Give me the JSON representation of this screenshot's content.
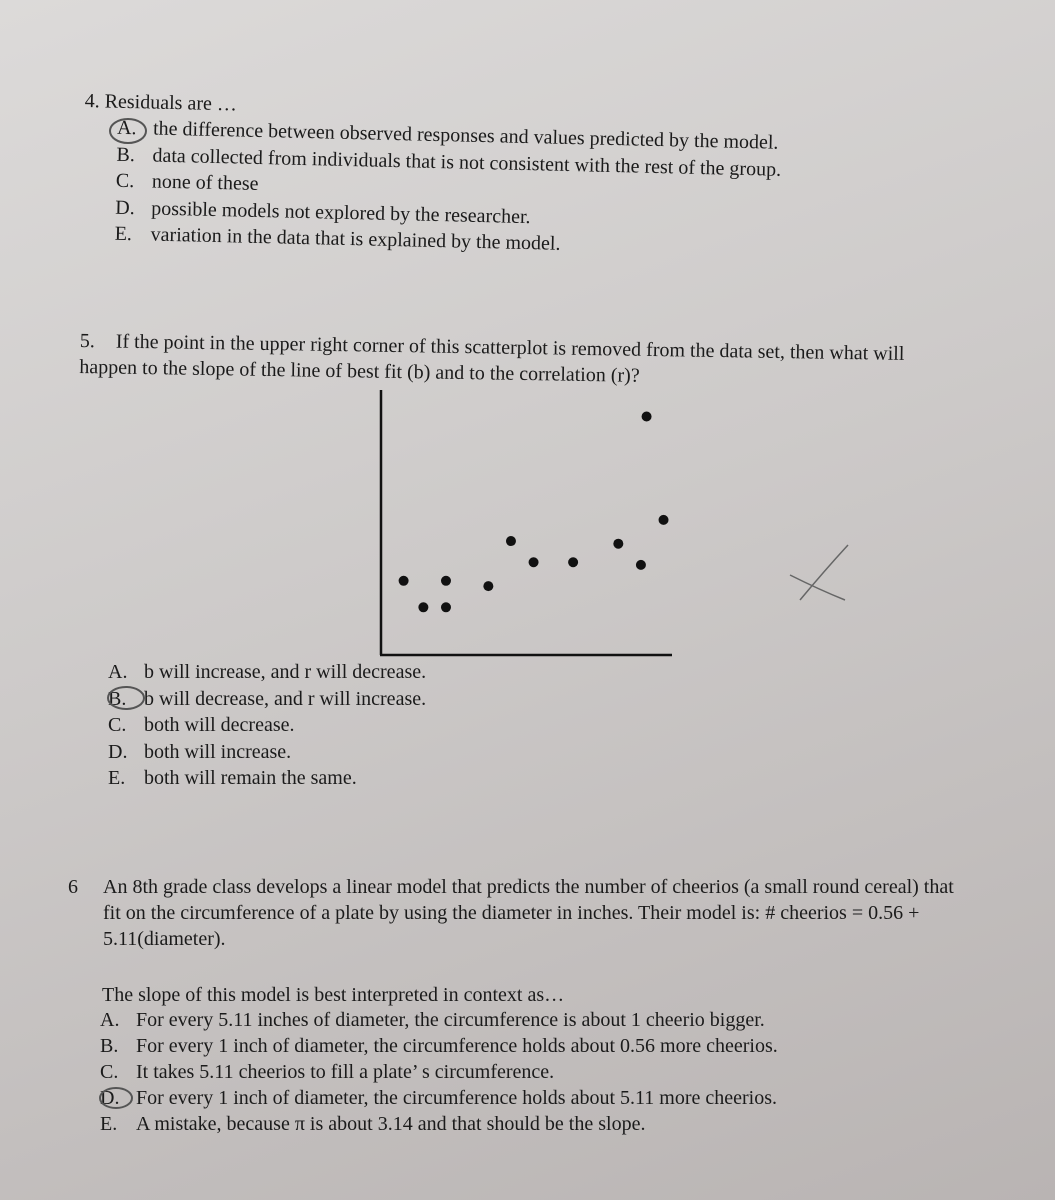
{
  "questions": [
    {
      "number": "4.",
      "prompt": "Residuals are …",
      "options": [
        {
          "letter": "A.",
          "text": "the difference between observed responses and values predicted by the model."
        },
        {
          "letter": "B.",
          "text": "data collected from individuals that is not consistent with the rest of the group."
        },
        {
          "letter": "C.",
          "text": "none of these"
        },
        {
          "letter": "D.",
          "text": "possible models not explored by the researcher."
        },
        {
          "letter": "E.",
          "text": "variation in the data that is explained by the model."
        }
      ]
    },
    {
      "number": "5.",
      "prompt": "If the point in the upper right corner of this scatterplot is removed from the data set, then what will happen to the slope of the line of best fit (b) and to the correlation (r)?",
      "scatter": {
        "type": "scatter",
        "x": [
          0.8,
          2.3,
          1.5,
          2.3,
          3.8,
          4.6,
          5.4,
          6.8,
          8.4,
          9.2,
          10.0,
          9.4
        ],
        "y": [
          2.8,
          2.8,
          1.8,
          1.8,
          2.6,
          4.3,
          3.5,
          3.5,
          4.2,
          3.4,
          5.1,
          9.0
        ],
        "xlim": [
          0,
          10.3
        ],
        "ylim": [
          0,
          10
        ],
        "color": "#111111"
      },
      "options": [
        {
          "letter": "A.",
          "text": "b will increase, and r will decrease."
        },
        {
          "letter": "B.",
          "text": "b will decrease, and r will increase."
        },
        {
          "letter": "C.",
          "text": "both will decrease."
        },
        {
          "letter": "D.",
          "text": "both will increase."
        },
        {
          "letter": "E.",
          "text": "both will remain the same."
        }
      ]
    },
    {
      "number": "6",
      "prompt": "An 8th grade class develops a linear model that predicts the number of cheerios (a small round cereal) that fit on the circumference of a plate by using the diameter in inches. Their model is: # cheerios = 0.56 + 5.11(diameter).",
      "subprompt": "The slope of this model is best interpreted in context as…",
      "options": [
        {
          "letter": "A.",
          "text": "For every 5.11 inches of diameter, the circumference is about 1 cheerio bigger."
        },
        {
          "letter": "B.",
          "text": "For every 1 inch of diameter, the circumference holds about 0.56 more cheerios."
        },
        {
          "letter": "C.",
          "text": "It takes 5.11 cheerios to fill a plate’ s circumference."
        },
        {
          "letter": "D.",
          "text": "For every 1 inch of diameter, the circumference holds about 5.11 more cheerios."
        },
        {
          "letter": "E.",
          "text": "A mistake, because π is about 3.14 and that should be the slope."
        }
      ]
    }
  ]
}
